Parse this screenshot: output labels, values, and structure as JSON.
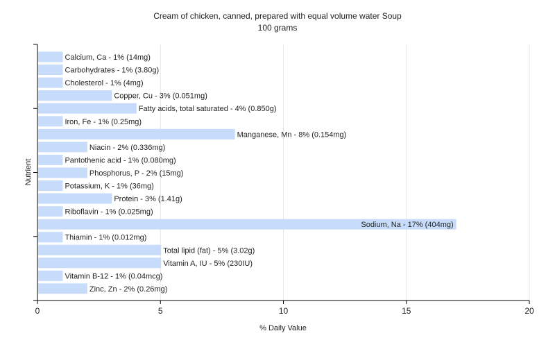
{
  "chart_data": {
    "type": "bar",
    "orientation": "horizontal",
    "title": "Cream of chicken, canned, prepared with equal volume water Soup",
    "subtitle": "100 grams",
    "xlabel": "% Daily Value",
    "ylabel": "Nutrient",
    "xlim": [
      0,
      20
    ],
    "xticks": [
      0,
      5,
      10,
      15,
      20
    ],
    "grid": true,
    "bar_color": "#c6dcfa",
    "categories": [
      "Calcium, Ca",
      "Carbohydrates",
      "Cholesterol",
      "Copper, Cu",
      "Fatty acids, total saturated",
      "Iron, Fe",
      "Manganese, Mn",
      "Niacin",
      "Pantothenic acid",
      "Phosphorus, P",
      "Potassium, K",
      "Protein",
      "Riboflavin",
      "Sodium, Na",
      "Thiamin",
      "Total lipid (fat)",
      "Vitamin A, IU",
      "Vitamin B-12",
      "Zinc, Zn"
    ],
    "values": [
      1,
      1,
      1,
      3,
      4,
      1,
      8,
      2,
      1,
      2,
      1,
      3,
      1,
      17,
      1,
      5,
      5,
      1,
      2
    ],
    "labels": [
      "Calcium, Ca - 1% (14mg)",
      "Carbohydrates - 1% (3.80g)",
      "Cholesterol - 1% (4mg)",
      "Copper, Cu - 3% (0.051mg)",
      "Fatty acids, total saturated - 4% (0.850g)",
      "Iron, Fe - 1% (0.25mg)",
      "Manganese, Mn - 8% (0.154mg)",
      "Niacin - 2% (0.336mg)",
      "Pantothenic acid - 1% (0.080mg)",
      "Phosphorus, P - 2% (15mg)",
      "Potassium, K - 1% (36mg)",
      "Protein - 3% (1.41g)",
      "Riboflavin - 1% (0.025mg)",
      "Sodium, Na - 17% (404mg)",
      "Thiamin - 1% (0.012mg)",
      "Total lipid (fat) - 5% (3.02g)",
      "Vitamin A, IU - 5% (230IU)",
      "Vitamin B-12 - 1% (0.04mcg)",
      "Zinc, Zn - 2% (0.26mg)"
    ]
  }
}
